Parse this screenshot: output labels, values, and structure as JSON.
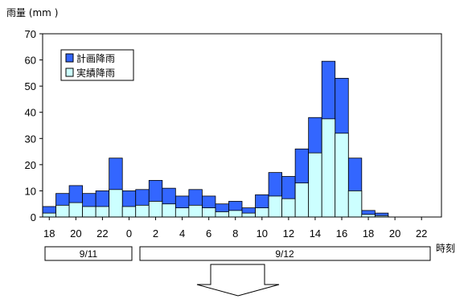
{
  "chart_data": {
    "type": "bar",
    "stacked": "overlay",
    "ylabel": "雨量 (mm )",
    "xlabel": "時刻",
    "ylim": [
      0,
      70
    ],
    "yticks": [
      0,
      10,
      20,
      30,
      40,
      50,
      60,
      70
    ],
    "xtick_labels": [
      "18",
      "20",
      "22",
      "0",
      "2",
      "4",
      "6",
      "8",
      "10",
      "12",
      "14",
      "16",
      "18",
      "20",
      "22"
    ],
    "series": [
      {
        "name": "計画降雨",
        "color": "#3366ff",
        "values": [
          4,
          9,
          12,
          9,
          10,
          22.5,
          10,
          10.5,
          14,
          11,
          8,
          10.5,
          8,
          5,
          6,
          3.5,
          8.5,
          17,
          15.5,
          26,
          38,
          59.5,
          53,
          22.5,
          2.5,
          1.5,
          0,
          0,
          0,
          0
        ]
      },
      {
        "name": "実績降雨",
        "color": "#ccffff",
        "values": [
          1.5,
          4.5,
          5.5,
          4,
          4,
          10.5,
          4,
          4.5,
          6,
          5,
          3.5,
          4.5,
          3.5,
          2,
          2.5,
          1.5,
          3.5,
          8,
          7,
          13,
          24.5,
          37.5,
          32,
          10,
          1,
          0.5,
          0,
          0,
          0,
          0
        ]
      }
    ],
    "grid": false,
    "legend_position": "top-left"
  },
  "dates": [
    {
      "label": "9/11"
    },
    {
      "label": "9/12"
    }
  ]
}
